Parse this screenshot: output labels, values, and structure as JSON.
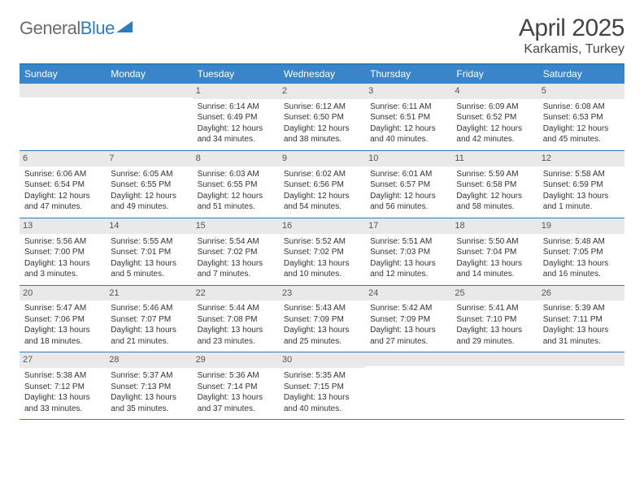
{
  "logo": {
    "word1": "General",
    "word2": "Blue"
  },
  "title": "April 2025",
  "location": "Karkamis, Turkey",
  "colors": {
    "header_bar": "#3a85c9",
    "accent_line": "#2f7bbf",
    "daynum_bg": "#e9e9e9",
    "text": "#333333",
    "logo_gray": "#6b6b6b"
  },
  "day_headers": [
    "Sunday",
    "Monday",
    "Tuesday",
    "Wednesday",
    "Thursday",
    "Friday",
    "Saturday"
  ],
  "weeks": [
    [
      {
        "empty": true
      },
      {
        "empty": true
      },
      {
        "n": "1",
        "sr": "Sunrise: 6:14 AM",
        "ss": "Sunset: 6:49 PM",
        "dl": "Daylight: 12 hours and 34 minutes."
      },
      {
        "n": "2",
        "sr": "Sunrise: 6:12 AM",
        "ss": "Sunset: 6:50 PM",
        "dl": "Daylight: 12 hours and 38 minutes."
      },
      {
        "n": "3",
        "sr": "Sunrise: 6:11 AM",
        "ss": "Sunset: 6:51 PM",
        "dl": "Daylight: 12 hours and 40 minutes."
      },
      {
        "n": "4",
        "sr": "Sunrise: 6:09 AM",
        "ss": "Sunset: 6:52 PM",
        "dl": "Daylight: 12 hours and 42 minutes."
      },
      {
        "n": "5",
        "sr": "Sunrise: 6:08 AM",
        "ss": "Sunset: 6:53 PM",
        "dl": "Daylight: 12 hours and 45 minutes."
      }
    ],
    [
      {
        "n": "6",
        "sr": "Sunrise: 6:06 AM",
        "ss": "Sunset: 6:54 PM",
        "dl": "Daylight: 12 hours and 47 minutes."
      },
      {
        "n": "7",
        "sr": "Sunrise: 6:05 AM",
        "ss": "Sunset: 6:55 PM",
        "dl": "Daylight: 12 hours and 49 minutes."
      },
      {
        "n": "8",
        "sr": "Sunrise: 6:03 AM",
        "ss": "Sunset: 6:55 PM",
        "dl": "Daylight: 12 hours and 51 minutes."
      },
      {
        "n": "9",
        "sr": "Sunrise: 6:02 AM",
        "ss": "Sunset: 6:56 PM",
        "dl": "Daylight: 12 hours and 54 minutes."
      },
      {
        "n": "10",
        "sr": "Sunrise: 6:01 AM",
        "ss": "Sunset: 6:57 PM",
        "dl": "Daylight: 12 hours and 56 minutes."
      },
      {
        "n": "11",
        "sr": "Sunrise: 5:59 AM",
        "ss": "Sunset: 6:58 PM",
        "dl": "Daylight: 12 hours and 58 minutes."
      },
      {
        "n": "12",
        "sr": "Sunrise: 5:58 AM",
        "ss": "Sunset: 6:59 PM",
        "dl": "Daylight: 13 hours and 1 minute."
      }
    ],
    [
      {
        "n": "13",
        "sr": "Sunrise: 5:56 AM",
        "ss": "Sunset: 7:00 PM",
        "dl": "Daylight: 13 hours and 3 minutes."
      },
      {
        "n": "14",
        "sr": "Sunrise: 5:55 AM",
        "ss": "Sunset: 7:01 PM",
        "dl": "Daylight: 13 hours and 5 minutes."
      },
      {
        "n": "15",
        "sr": "Sunrise: 5:54 AM",
        "ss": "Sunset: 7:02 PM",
        "dl": "Daylight: 13 hours and 7 minutes."
      },
      {
        "n": "16",
        "sr": "Sunrise: 5:52 AM",
        "ss": "Sunset: 7:02 PM",
        "dl": "Daylight: 13 hours and 10 minutes."
      },
      {
        "n": "17",
        "sr": "Sunrise: 5:51 AM",
        "ss": "Sunset: 7:03 PM",
        "dl": "Daylight: 13 hours and 12 minutes."
      },
      {
        "n": "18",
        "sr": "Sunrise: 5:50 AM",
        "ss": "Sunset: 7:04 PM",
        "dl": "Daylight: 13 hours and 14 minutes."
      },
      {
        "n": "19",
        "sr": "Sunrise: 5:48 AM",
        "ss": "Sunset: 7:05 PM",
        "dl": "Daylight: 13 hours and 16 minutes."
      }
    ],
    [
      {
        "n": "20",
        "sr": "Sunrise: 5:47 AM",
        "ss": "Sunset: 7:06 PM",
        "dl": "Daylight: 13 hours and 18 minutes."
      },
      {
        "n": "21",
        "sr": "Sunrise: 5:46 AM",
        "ss": "Sunset: 7:07 PM",
        "dl": "Daylight: 13 hours and 21 minutes."
      },
      {
        "n": "22",
        "sr": "Sunrise: 5:44 AM",
        "ss": "Sunset: 7:08 PM",
        "dl": "Daylight: 13 hours and 23 minutes."
      },
      {
        "n": "23",
        "sr": "Sunrise: 5:43 AM",
        "ss": "Sunset: 7:09 PM",
        "dl": "Daylight: 13 hours and 25 minutes."
      },
      {
        "n": "24",
        "sr": "Sunrise: 5:42 AM",
        "ss": "Sunset: 7:09 PM",
        "dl": "Daylight: 13 hours and 27 minutes."
      },
      {
        "n": "25",
        "sr": "Sunrise: 5:41 AM",
        "ss": "Sunset: 7:10 PM",
        "dl": "Daylight: 13 hours and 29 minutes."
      },
      {
        "n": "26",
        "sr": "Sunrise: 5:39 AM",
        "ss": "Sunset: 7:11 PM",
        "dl": "Daylight: 13 hours and 31 minutes."
      }
    ],
    [
      {
        "n": "27",
        "sr": "Sunrise: 5:38 AM",
        "ss": "Sunset: 7:12 PM",
        "dl": "Daylight: 13 hours and 33 minutes."
      },
      {
        "n": "28",
        "sr": "Sunrise: 5:37 AM",
        "ss": "Sunset: 7:13 PM",
        "dl": "Daylight: 13 hours and 35 minutes."
      },
      {
        "n": "29",
        "sr": "Sunrise: 5:36 AM",
        "ss": "Sunset: 7:14 PM",
        "dl": "Daylight: 13 hours and 37 minutes."
      },
      {
        "n": "30",
        "sr": "Sunrise: 5:35 AM",
        "ss": "Sunset: 7:15 PM",
        "dl": "Daylight: 13 hours and 40 minutes."
      },
      {
        "empty": true
      },
      {
        "empty": true
      },
      {
        "empty": true
      }
    ]
  ]
}
